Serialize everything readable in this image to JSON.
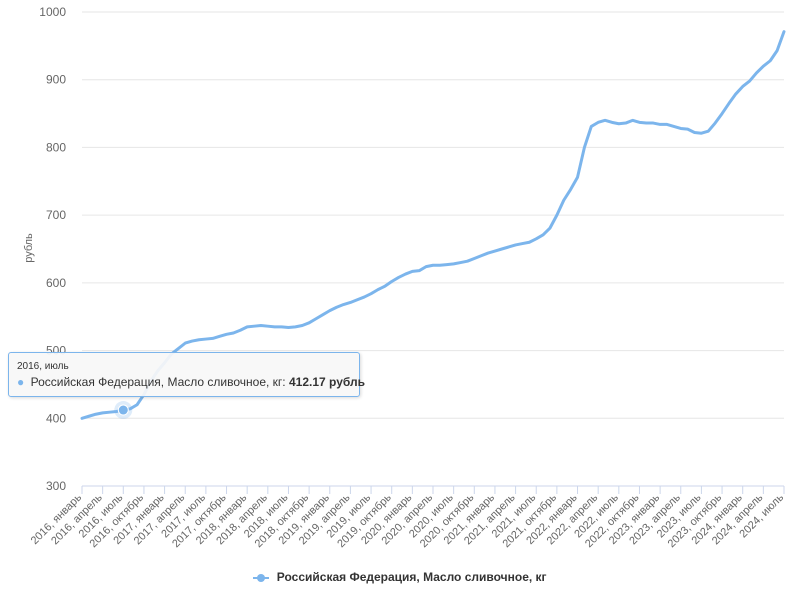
{
  "chart_data": {
    "type": "line",
    "ylabel": "рубль",
    "ylim": [
      300,
      1000
    ],
    "yticks": [
      "1000",
      "900",
      "800",
      "700",
      "600",
      "500",
      "400",
      "300"
    ],
    "grid": true,
    "legend_position": "bottom",
    "color": "#7cb5ec",
    "x_labels": [
      "2016, январь",
      "2016, апрель",
      "2016, июль",
      "2016, октябрь",
      "2017, январь",
      "2017, апрель",
      "2017, июль",
      "2017, октябрь",
      "2018, январь",
      "2018, апрель",
      "2018, июль",
      "2018, октябрь",
      "2019, январь",
      "2019, апрель",
      "2019, июль",
      "2019, октябрь",
      "2020, январь",
      "2020, апрель",
      "2020, июль",
      "2020, октябрь",
      "2021, январь",
      "2021, апрель",
      "2021, июль",
      "2021, октябрь",
      "2022, январь",
      "2022, апрель",
      "2022, июль",
      "2022, октябрь",
      "2023, январь",
      "2023, апрель",
      "2023, июль",
      "2023, октябрь",
      "2024, январь",
      "2024, апрель",
      "2024, июль"
    ],
    "series": [
      {
        "name": "Российская Федерация, Масло сливочное, кг",
        "values": [
          400,
          403,
          406,
          408,
          409,
          410,
          412.17,
          414,
          420,
          435,
          455,
          470,
          482,
          495,
          503,
          511,
          514,
          516,
          517,
          518,
          521,
          524,
          526,
          530,
          535,
          536,
          537,
          536,
          535,
          535,
          534,
          535,
          537,
          541,
          547,
          553,
          559,
          564,
          568,
          571,
          575,
          579,
          584,
          590,
          595,
          602,
          608,
          613,
          617,
          618,
          624,
          626,
          626,
          627,
          628,
          630,
          632,
          636,
          640,
          644,
          647,
          650,
          653,
          656,
          658,
          660,
          665,
          671,
          681,
          700,
          722,
          738,
          756,
          800,
          831,
          837,
          840,
          837,
          835,
          836,
          840,
          837,
          836,
          836,
          834,
          834,
          831,
          828,
          827,
          822,
          821,
          824,
          836,
          850,
          865,
          879,
          890,
          898,
          910,
          920,
          928,
          943,
          971
        ]
      }
    ],
    "tooltip": {
      "header": "2016, июль",
      "series_label": "Российская Федерация, Масло сливочное, кг:",
      "value_text": "412.17 рубль",
      "index": 6
    }
  }
}
